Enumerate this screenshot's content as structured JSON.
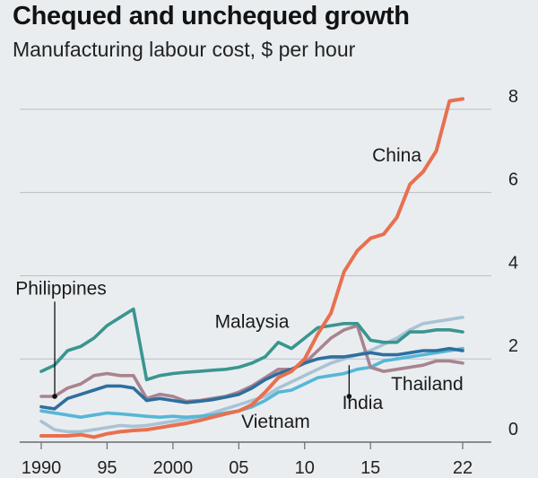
{
  "chart_data": {
    "type": "line",
    "title": "Chequed and unchequed growth",
    "subtitle": "Manufacturing labour cost, $ per hour",
    "xlabel": "",
    "ylabel": "",
    "xlim": [
      1990,
      2022.5
    ],
    "ylim": [
      0,
      8.5
    ],
    "y_ticks": [
      {
        "value": 0,
        "label": "0"
      },
      {
        "value": 2,
        "label": "2"
      },
      {
        "value": 4,
        "label": "4"
      },
      {
        "value": 6,
        "label": "6"
      },
      {
        "value": 8,
        "label": "8"
      }
    ],
    "x_ticks": [
      {
        "value": 1990,
        "label": "1990"
      },
      {
        "value": 1995,
        "label": "95"
      },
      {
        "value": 2000,
        "label": "2000"
      },
      {
        "value": 2005,
        "label": "05"
      },
      {
        "value": 2010,
        "label": "10"
      },
      {
        "value": 2015,
        "label": "15"
      },
      {
        "value": 2022,
        "label": "22"
      }
    ],
    "grid": "horizontal",
    "y_axis_side": "right",
    "series": [
      {
        "name": "Philippines",
        "color": "#2e6f9e",
        "x": [
          1990,
          1991,
          1992,
          1993,
          1994,
          1995,
          1996,
          1997,
          1998,
          1999,
          2000,
          2001,
          2002,
          2003,
          2004,
          2005,
          2006,
          2007,
          2008,
          2009,
          2010,
          2011,
          2012,
          2013,
          2014,
          2015,
          2016,
          2017,
          2018,
          2019,
          2020,
          2021,
          2022
        ],
        "values": [
          0.85,
          0.8,
          1.05,
          1.15,
          1.25,
          1.35,
          1.35,
          1.3,
          1.0,
          1.05,
          1.0,
          0.95,
          0.98,
          1.02,
          1.08,
          1.15,
          1.3,
          1.5,
          1.65,
          1.75,
          1.9,
          2.0,
          2.05,
          2.05,
          2.1,
          2.15,
          2.1,
          2.1,
          2.15,
          2.2,
          2.2,
          2.25,
          2.2
        ]
      },
      {
        "name": "China",
        "color": "#e8704f",
        "x": [
          1990,
          1991,
          1992,
          1993,
          1994,
          1995,
          1996,
          1997,
          1998,
          1999,
          2000,
          2001,
          2002,
          2003,
          2004,
          2005,
          2006,
          2007,
          2008,
          2009,
          2010,
          2011,
          2012,
          2013,
          2014,
          2015,
          2016,
          2017,
          2018,
          2019,
          2020,
          2021,
          2022
        ],
        "values": [
          0.15,
          0.15,
          0.15,
          0.18,
          0.12,
          0.2,
          0.25,
          0.28,
          0.3,
          0.35,
          0.4,
          0.45,
          0.52,
          0.6,
          0.68,
          0.75,
          0.9,
          1.2,
          1.55,
          1.7,
          2.0,
          2.6,
          3.1,
          4.1,
          4.6,
          4.9,
          5.0,
          5.4,
          6.2,
          6.5,
          7.0,
          8.2,
          8.25
        ]
      },
      {
        "name": "Malaysia",
        "color": "#3a9590",
        "x": [
          1990,
          1991,
          1992,
          1993,
          1994,
          1995,
          1996,
          1997,
          1998,
          1999,
          2000,
          2001,
          2002,
          2003,
          2004,
          2005,
          2006,
          2007,
          2008,
          2009,
          2010,
          2011,
          2012,
          2013,
          2014,
          2015,
          2016,
          2017,
          2018,
          2019,
          2020,
          2021,
          2022
        ],
        "values": [
          1.7,
          1.85,
          2.2,
          2.3,
          2.5,
          2.8,
          3.0,
          3.2,
          1.5,
          1.6,
          1.65,
          1.68,
          1.7,
          1.73,
          1.75,
          1.8,
          1.9,
          2.05,
          2.4,
          2.25,
          2.5,
          2.75,
          2.8,
          2.85,
          2.85,
          2.45,
          2.4,
          2.4,
          2.65,
          2.65,
          2.7,
          2.7,
          2.65
        ]
      },
      {
        "name": "Thailand",
        "color": "#a9838e",
        "x": [
          1990,
          1991,
          1992,
          1993,
          1994,
          1995,
          1996,
          1997,
          1998,
          1999,
          2000,
          2001,
          2002,
          2003,
          2004,
          2005,
          2006,
          2007,
          2008,
          2009,
          2010,
          2011,
          2012,
          2013,
          2014,
          2015,
          2016,
          2017,
          2018,
          2019,
          2020,
          2021,
          2022
        ],
        "values": [
          1.1,
          1.1,
          1.3,
          1.4,
          1.6,
          1.65,
          1.6,
          1.6,
          1.05,
          1.15,
          1.1,
          0.98,
          1.0,
          1.05,
          1.1,
          1.2,
          1.35,
          1.55,
          1.75,
          1.75,
          1.9,
          2.2,
          2.5,
          2.7,
          2.8,
          1.8,
          1.7,
          1.75,
          1.8,
          1.85,
          1.95,
          1.95,
          1.9
        ]
      },
      {
        "name": "India",
        "color": "#57b6d6",
        "x": [
          1990,
          1991,
          1992,
          1993,
          1994,
          1995,
          1996,
          1997,
          1998,
          1999,
          2000,
          2001,
          2002,
          2003,
          2004,
          2005,
          2006,
          2007,
          2008,
          2009,
          2010,
          2011,
          2012,
          2013,
          2014,
          2015,
          2016,
          2017,
          2018,
          2019,
          2020,
          2021,
          2022
        ],
        "values": [
          0.75,
          0.7,
          0.65,
          0.6,
          0.65,
          0.7,
          0.68,
          0.65,
          0.62,
          0.6,
          0.62,
          0.6,
          0.62,
          0.65,
          0.7,
          0.75,
          0.85,
          1.0,
          1.2,
          1.25,
          1.4,
          1.55,
          1.6,
          1.65,
          1.75,
          1.8,
          1.95,
          2.0,
          2.05,
          2.1,
          2.15,
          2.2,
          2.25
        ]
      },
      {
        "name": "Vietnam",
        "color": "#a9c3d5",
        "x": [
          1990,
          1991,
          1992,
          1993,
          1994,
          1995,
          1996,
          1997,
          1998,
          1999,
          2000,
          2001,
          2002,
          2003,
          2004,
          2005,
          2006,
          2007,
          2008,
          2009,
          2010,
          2011,
          2012,
          2013,
          2014,
          2015,
          2016,
          2017,
          2018,
          2019,
          2020,
          2021,
          2022
        ],
        "values": [
          0.5,
          0.3,
          0.25,
          0.25,
          0.3,
          0.35,
          0.4,
          0.38,
          0.4,
          0.45,
          0.5,
          0.55,
          0.6,
          0.7,
          0.8,
          0.9,
          1.0,
          1.1,
          1.3,
          1.45,
          1.6,
          1.75,
          1.9,
          2.0,
          2.1,
          2.2,
          2.35,
          2.5,
          2.7,
          2.85,
          2.9,
          2.95,
          3.0
        ]
      }
    ],
    "labels": [
      {
        "series": "Philippines",
        "text": "Philippines",
        "x": 1991.5,
        "y": 3.55,
        "anchor": "middle",
        "leader_to": 1.1
      },
      {
        "series": "China",
        "text": "China",
        "x": 2017.0,
        "y": 6.75,
        "anchor": "middle"
      },
      {
        "series": "Malaysia",
        "text": "Malaysia",
        "x": 2006.0,
        "y": 2.75,
        "anchor": "middle"
      },
      {
        "series": "Thailand",
        "text": "Thailand",
        "x": 2019.3,
        "y": 1.25,
        "anchor": "middle"
      },
      {
        "series": "India",
        "text": "India",
        "x": 2014.4,
        "y": 0.8,
        "anchor": "middle",
        "leader_from": 1.1,
        "leader_to": 1.85
      },
      {
        "series": "Vietnam",
        "text": "Vietnam",
        "x": 2007.8,
        "y": 0.35,
        "anchor": "middle"
      }
    ]
  }
}
